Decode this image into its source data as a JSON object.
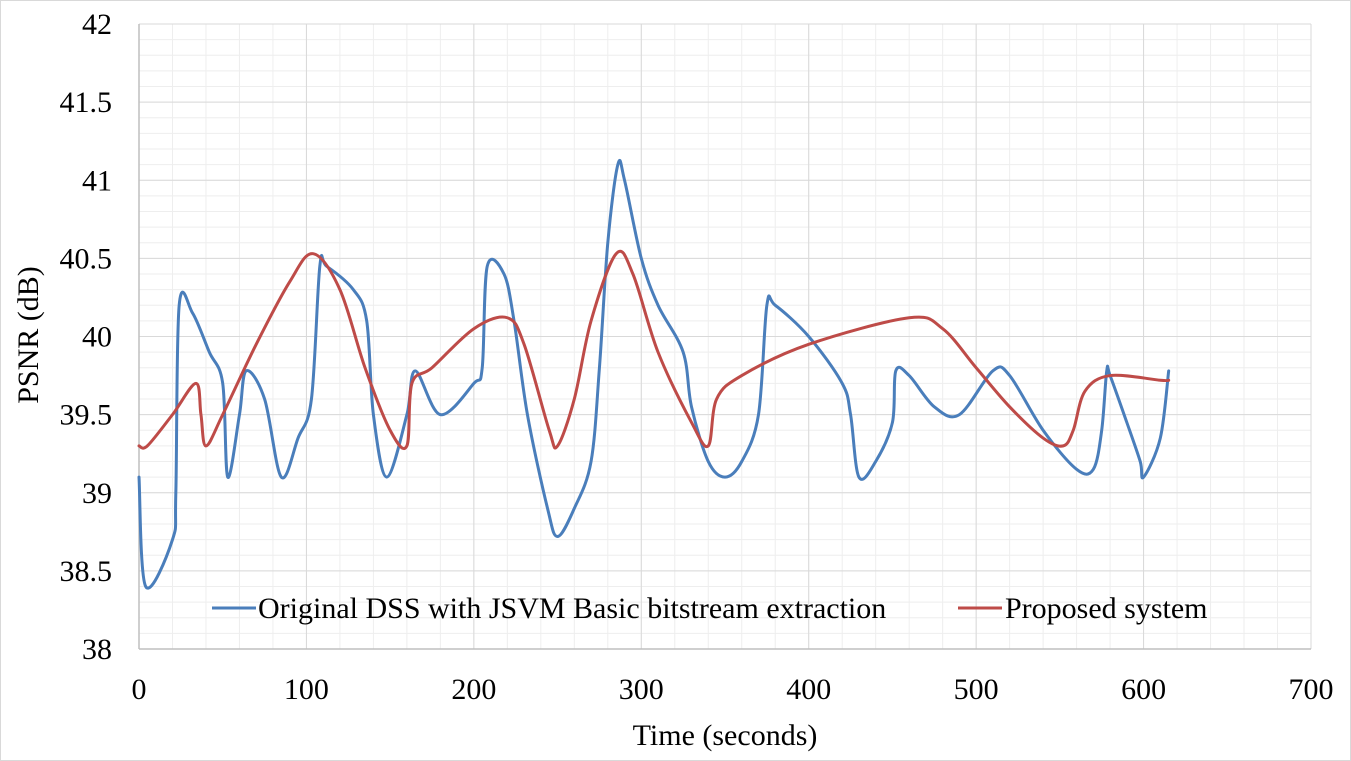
{
  "chart_data": {
    "type": "line",
    "title": "",
    "xlabel": "Time (seconds)",
    "ylabel": "PSNR (dB)",
    "xlim": [
      0,
      700
    ],
    "ylim": [
      38,
      42
    ],
    "xticks": [
      0,
      100,
      200,
      300,
      400,
      500,
      600,
      700
    ],
    "yticks": [
      38,
      38.5,
      39,
      39.5,
      40,
      40.5,
      41,
      41.5,
      42
    ],
    "xtick_labels": [
      "0",
      "100",
      "200",
      "300",
      "400",
      "500",
      "600",
      "700"
    ],
    "ytick_labels": [
      "38",
      "38.5",
      "39",
      "39.5",
      "40",
      "40.5",
      "41",
      "41.5",
      "42"
    ],
    "grid": true,
    "legend_position": "bottom",
    "series": [
      {
        "name": "Original DSS with JSVM Basic bitstream extraction",
        "color": "#4a7ebb",
        "x": [
          0,
          4,
          20,
          22,
          24,
          32,
          42,
          50,
          53,
          60,
          64,
          75,
          85,
          95,
          103,
          108,
          112,
          128,
          136,
          140,
          148,
          160,
          165,
          180,
          200,
          205,
          208,
          218,
          224,
          232,
          244,
          250,
          260,
          270,
          275,
          280,
          286,
          290,
          300,
          310,
          325,
          330,
          340,
          350,
          360,
          370,
          375,
          380,
          400,
          420,
          425,
          430,
          440,
          450,
          452,
          460,
          475,
          490,
          510,
          520,
          540,
          560,
          570,
          575,
          578,
          580,
          590,
          598,
          600,
          610,
          615
        ],
        "values": [
          39.1,
          38.4,
          38.7,
          39.0,
          40.2,
          40.15,
          39.9,
          39.7,
          39.1,
          39.5,
          39.78,
          39.6,
          39.1,
          39.35,
          39.6,
          40.45,
          40.45,
          40.3,
          40.1,
          39.5,
          39.1,
          39.5,
          39.78,
          39.5,
          39.7,
          39.8,
          40.45,
          40.4,
          40.1,
          39.5,
          38.9,
          38.72,
          38.9,
          39.2,
          39.8,
          40.6,
          41.1,
          41.0,
          40.5,
          40.2,
          39.9,
          39.55,
          39.2,
          39.1,
          39.2,
          39.5,
          40.2,
          40.2,
          40.0,
          39.7,
          39.5,
          39.1,
          39.2,
          39.45,
          39.78,
          39.75,
          39.55,
          39.5,
          39.78,
          39.75,
          39.4,
          39.15,
          39.15,
          39.4,
          39.78,
          39.75,
          39.45,
          39.2,
          39.1,
          39.35,
          39.78
        ]
      },
      {
        "name": "Proposed system",
        "color": "#be4b48",
        "x": [
          0,
          5,
          20,
          34,
          37,
          40,
          50,
          70,
          90,
          104,
          120,
          135,
          150,
          160,
          163,
          175,
          200,
          220,
          230,
          245,
          250,
          260,
          270,
          285,
          295,
          310,
          330,
          340,
          345,
          360,
          400,
          460,
          480,
          500,
          520,
          540,
          552,
          558,
          565,
          580,
          610,
          615
        ],
        "values": [
          39.3,
          39.3,
          39.5,
          39.7,
          39.5,
          39.3,
          39.5,
          39.95,
          40.35,
          40.53,
          40.3,
          39.8,
          39.4,
          39.3,
          39.7,
          39.8,
          40.05,
          40.12,
          39.95,
          39.4,
          39.3,
          39.6,
          40.1,
          40.53,
          40.4,
          39.9,
          39.45,
          39.3,
          39.6,
          39.75,
          39.95,
          40.12,
          40.05,
          39.8,
          39.55,
          39.35,
          39.3,
          39.4,
          39.65,
          39.75,
          39.72,
          39.72
        ]
      }
    ]
  }
}
